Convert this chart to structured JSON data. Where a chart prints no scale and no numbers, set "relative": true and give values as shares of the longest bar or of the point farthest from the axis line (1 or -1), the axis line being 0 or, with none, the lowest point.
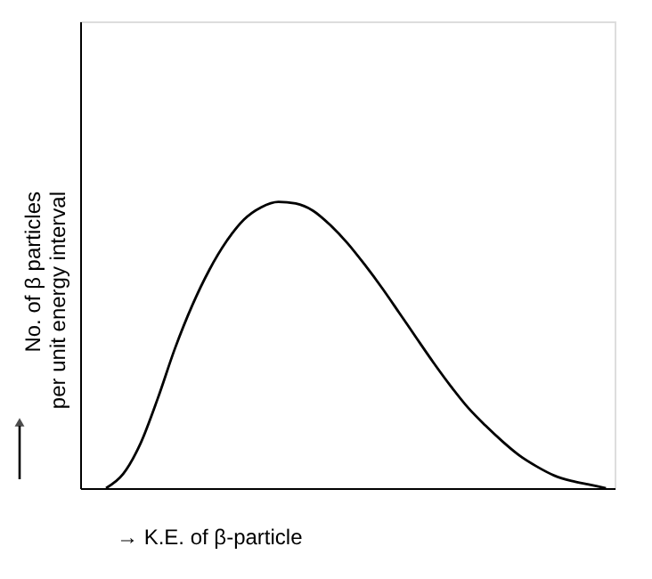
{
  "chart_data": {
    "type": "line",
    "relative": true,
    "xlabel": "→ K.E. of β-particle",
    "ylabel": "No. of β particles per unit energy interval",
    "categories": [
      null,
      null,
      null,
      null,
      null,
      null,
      null,
      null,
      null,
      null,
      null,
      null,
      null,
      null,
      null,
      null,
      null,
      null,
      null,
      null,
      null,
      null,
      null,
      null,
      null,
      null,
      null,
      null,
      null,
      null
    ],
    "series": [
      {
        "color": "#000000",
        "values": [
          0,
          0.05,
          0.156,
          0.313,
          0.488,
          0.638,
          0.763,
          0.863,
          0.938,
          0.981,
          1,
          0.994,
          0.969,
          0.919,
          0.856,
          0.781,
          0.7,
          0.613,
          0.525,
          0.438,
          0.356,
          0.281,
          0.219,
          0.163,
          0.113,
          0.075,
          0.044,
          0.025,
          0.0125,
          0
        ]
      }
    ],
    "grid": false,
    "tick_labels": false,
    "marker": "none",
    "line_style": "solid"
  }
}
